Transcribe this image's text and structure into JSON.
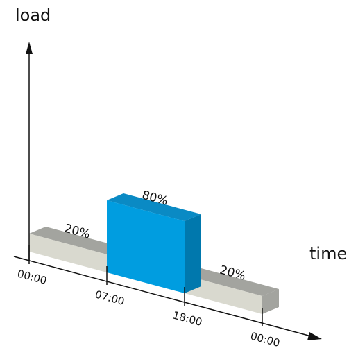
{
  "chart_data": {
    "type": "bar",
    "ylabel": "load",
    "xlabel": "time",
    "x_ticks": [
      "00:00",
      "07:00",
      "18:00",
      "00:00"
    ],
    "bars": [
      {
        "start": "00:00",
        "end": "07:00",
        "value": 20,
        "label": "20%"
      },
      {
        "start": "07:00",
        "end": "18:00",
        "value": 80,
        "label": "80%"
      },
      {
        "start": "18:00",
        "end": "00:00",
        "value": 20,
        "label": "20%"
      }
    ],
    "units": "%",
    "colors": {
      "low_front": "#d9d9cf",
      "low_side": "#a3a49f",
      "low_top": "#a3a49f",
      "peak_front": "#009de0",
      "peak_side": "#0078ad",
      "peak_top": "#0a8ac4",
      "axis": "#111111"
    }
  }
}
